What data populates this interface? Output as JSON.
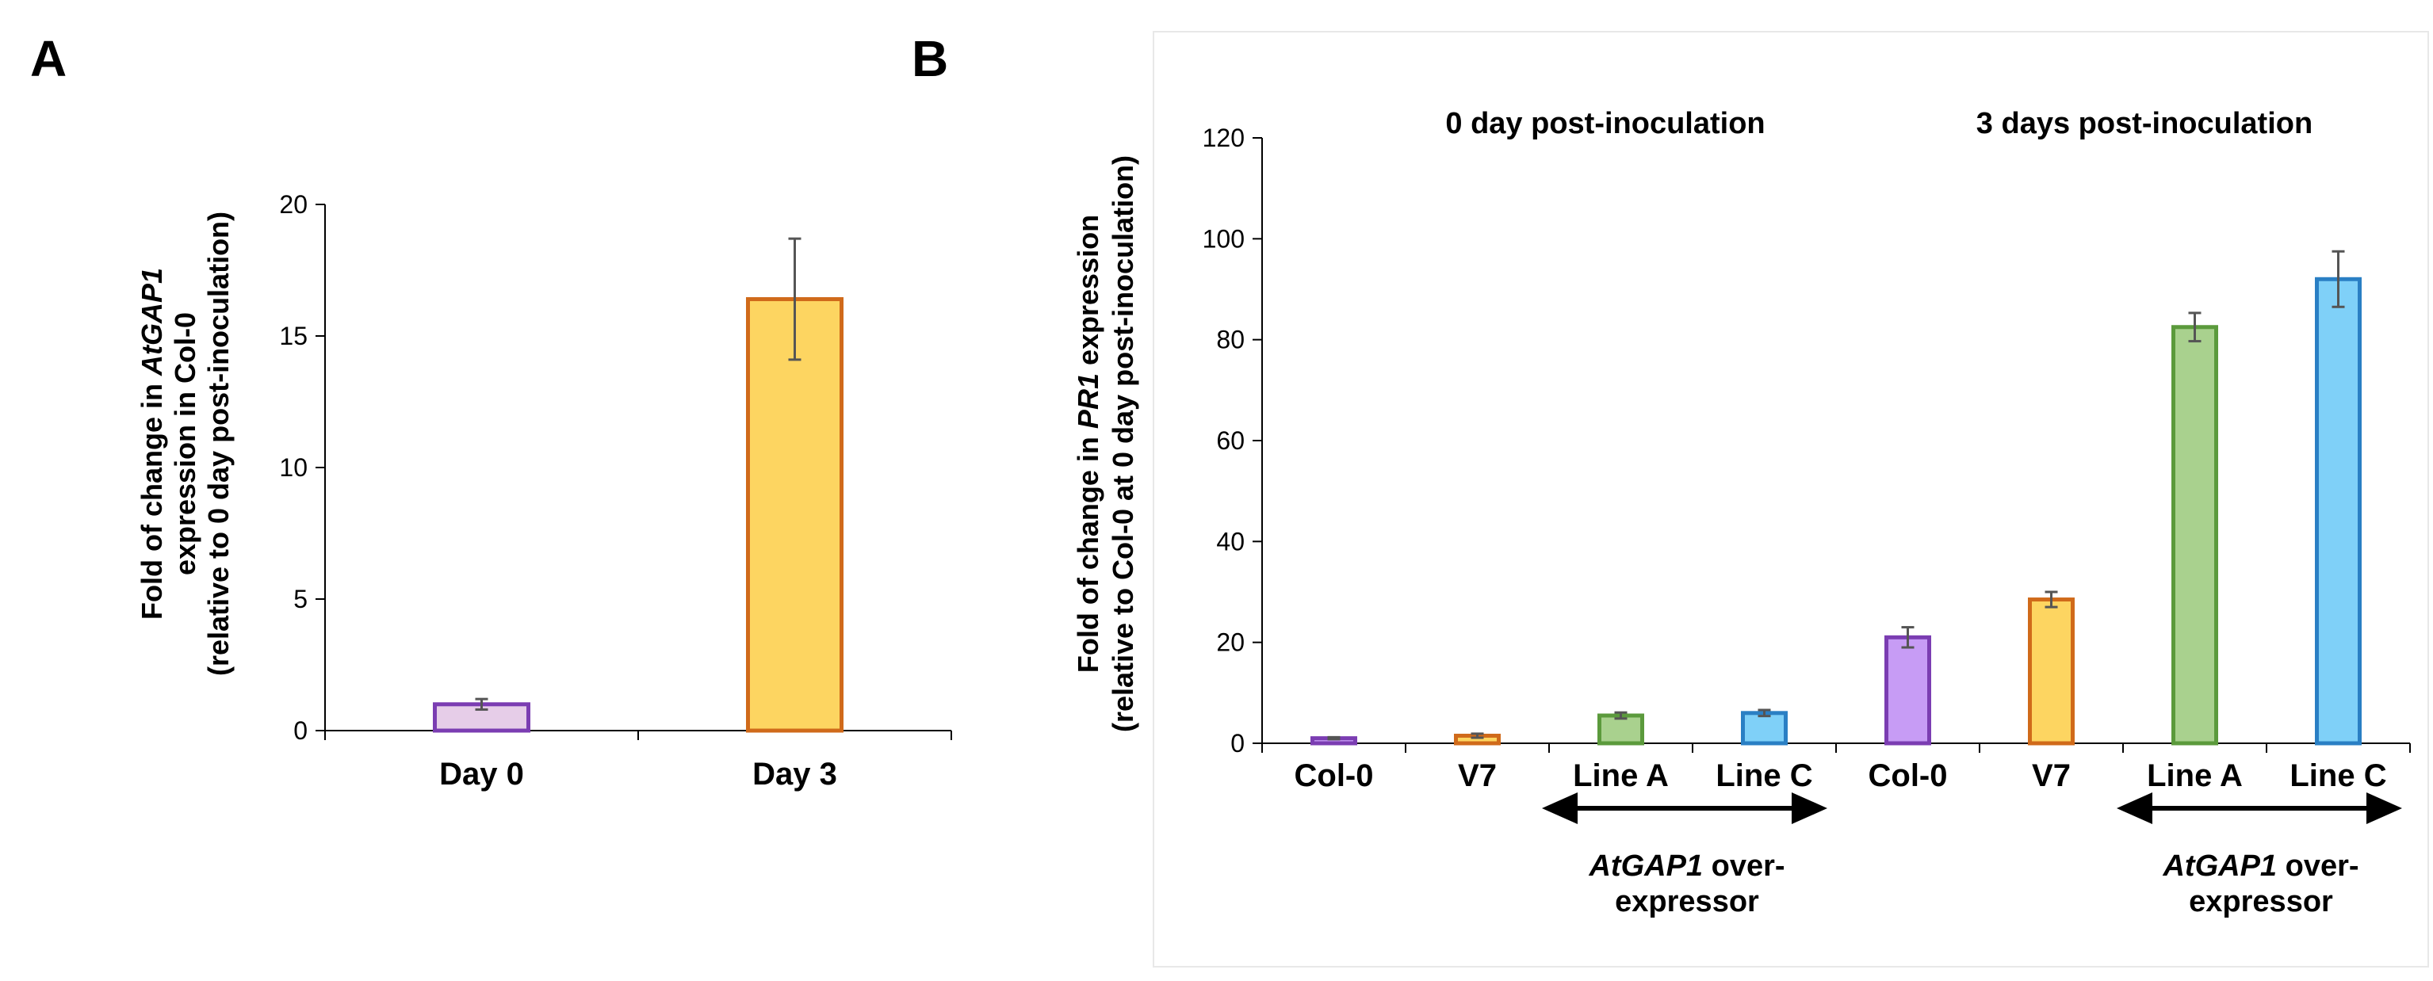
{
  "colors": {
    "purple_stroke": "#7b3db2",
    "purple_fill_light": "#e6cde8",
    "purple_fill": "#c79cf5",
    "orange_stroke": "#d06a1a",
    "yellow_fill": "#fdd561",
    "green_stroke": "#5b9a3c",
    "green_fill": "#a9d18e",
    "blue_stroke": "#2a7fc4",
    "blue_fill": "#7fd0f8"
  },
  "chart_data": [
    {
      "panel": "A",
      "type": "bar",
      "ylabel_parts": [
        "Fold of change in ",
        "AtGAP1"
      ],
      "ylabel_line2": "expression in Col-0",
      "ylabel_line3": "(relative to 0 day post-inoculation)",
      "categories": [
        "Day 0",
        "Day 3"
      ],
      "values": [
        1.0,
        16.4
      ],
      "errors": [
        0.2,
        2.3
      ],
      "ylim": [
        0,
        20
      ],
      "yticks": [
        "0",
        "5",
        "10",
        "15",
        "20"
      ],
      "grid": false
    },
    {
      "panel": "B",
      "type": "bar",
      "ylabel_parts": [
        "Fold of change in ",
        "PR1",
        " expression"
      ],
      "ylabel_line2": "(relative to Col-0 at 0 day post-inoculation)",
      "categories": [
        "Col-0",
        "V7",
        "Line A",
        "Line C",
        "Col-0",
        "V7",
        "Line A",
        "Line C"
      ],
      "values": [
        1.0,
        1.5,
        5.5,
        6.0,
        21.0,
        28.5,
        82.5,
        92.0
      ],
      "errors": [
        0.2,
        0.4,
        0.6,
        0.6,
        2.0,
        1.5,
        2.8,
        5.5
      ],
      "ylim": [
        0,
        120
      ],
      "yticks": [
        "0",
        "20",
        "40",
        "60",
        "80",
        "100",
        "120"
      ],
      "grid": false,
      "group_titles": [
        "0 day post-inoculation",
        "3 days post-inoculation"
      ],
      "arrow_label_italic": "AtGAP1",
      "arrow_label_rest": " over-",
      "arrow_label_line2": "expressor"
    }
  ]
}
